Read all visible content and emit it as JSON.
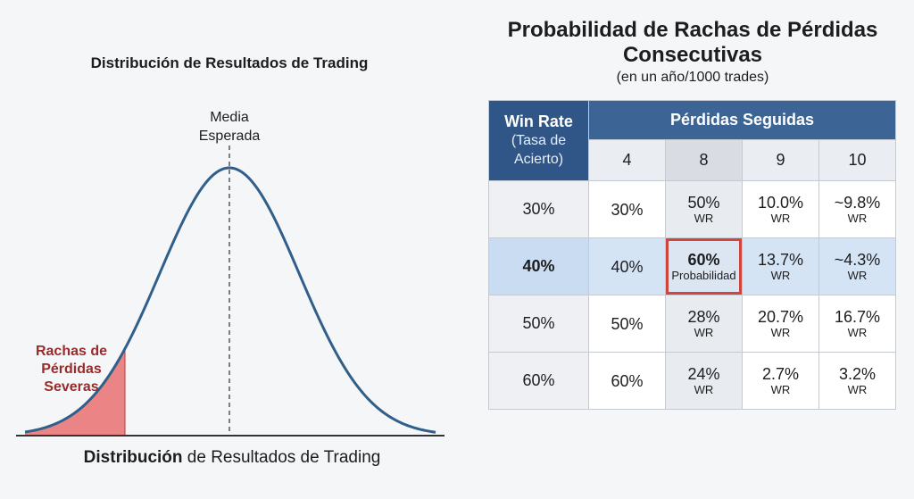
{
  "chart_data": [
    {
      "type": "area",
      "title": "Distribución de Resultados de Trading",
      "distribution": "normal",
      "mean_label_lines": [
        "Media",
        "Esperada"
      ],
      "tail_label_lines": [
        "Rachas de",
        "Pérdidas",
        "Severas"
      ],
      "tail_color": "#e07070",
      "curve_color": "#2f5f8a",
      "bottom_caption_bold": "Distribución",
      "bottom_caption_rest": " de Resultados de Trading"
    },
    {
      "type": "table",
      "title": "Probabilidad de Rachas de Pérdidas Consecutivas",
      "subtitle": "(en un año/1000 trades)",
      "row_header_title": "Win Rate",
      "row_header_subtitle_lines": [
        "(Tasa de",
        "Acierto)"
      ],
      "column_group_header": "Pérdidas Seguidas",
      "columns": [
        "4",
        "8",
        "9",
        "10"
      ],
      "rows": [
        {
          "label": "30%",
          "cells": [
            {
              "v": "30%",
              "s": ""
            },
            {
              "v": "50%",
              "s": "WR"
            },
            {
              "v": "10.0%",
              "s": "WR"
            },
            {
              "v": "~9.8%",
              "s": "WR"
            }
          ]
        },
        {
          "label": "40%",
          "cells": [
            {
              "v": "40%",
              "s": ""
            },
            {
              "v": "60%",
              "s": "Probabilidad"
            },
            {
              "v": "13.7%",
              "s": "WR"
            },
            {
              "v": "~4.3%",
              "s": "WR"
            }
          ]
        },
        {
          "label": "50%",
          "cells": [
            {
              "v": "50%",
              "s": ""
            },
            {
              "v": "28%",
              "s": "WR"
            },
            {
              "v": "20.7%",
              "s": "WR"
            },
            {
              "v": "16.7%",
              "s": "WR"
            }
          ]
        },
        {
          "label": "60%",
          "cells": [
            {
              "v": "60%",
              "s": ""
            },
            {
              "v": "24%",
              "s": "WR"
            },
            {
              "v": "2.7%",
              "s": "WR"
            },
            {
              "v": "3.2%",
              "s": "WR"
            }
          ]
        }
      ],
      "highlighted_row": "40%",
      "emphasized_cell": {
        "row": "40%",
        "column": "8"
      },
      "header_color": "#2f5686",
      "highlight_color": "#d4e4f5",
      "emphasis_border_color": "#d0453c"
    }
  ]
}
